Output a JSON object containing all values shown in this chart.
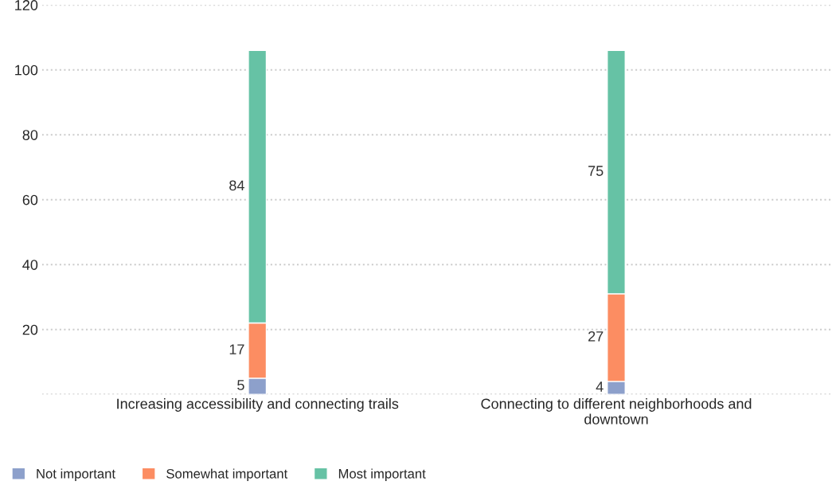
{
  "chart_data": {
    "type": "bar",
    "stacked": true,
    "categories": [
      "Increasing accessibility and connecting trails",
      "Connecting to different neighborhoods and\ndowntown"
    ],
    "series": [
      {
        "name": "Not important",
        "color": "#8da0cb",
        "values": [
          5,
          4
        ]
      },
      {
        "name": "Somewhat important",
        "color": "#fc8d62",
        "values": [
          17,
          27
        ]
      },
      {
        "name": "Most important",
        "color": "#66c2a5",
        "values": [
          84,
          75
        ]
      }
    ],
    "ylim": [
      0,
      120
    ],
    "yticks": [
      {
        "value": 0,
        "label": null
      },
      20,
      40,
      60,
      80,
      100,
      120
    ],
    "grid": "y",
    "legend": "bottom left",
    "data_labels": true
  }
}
